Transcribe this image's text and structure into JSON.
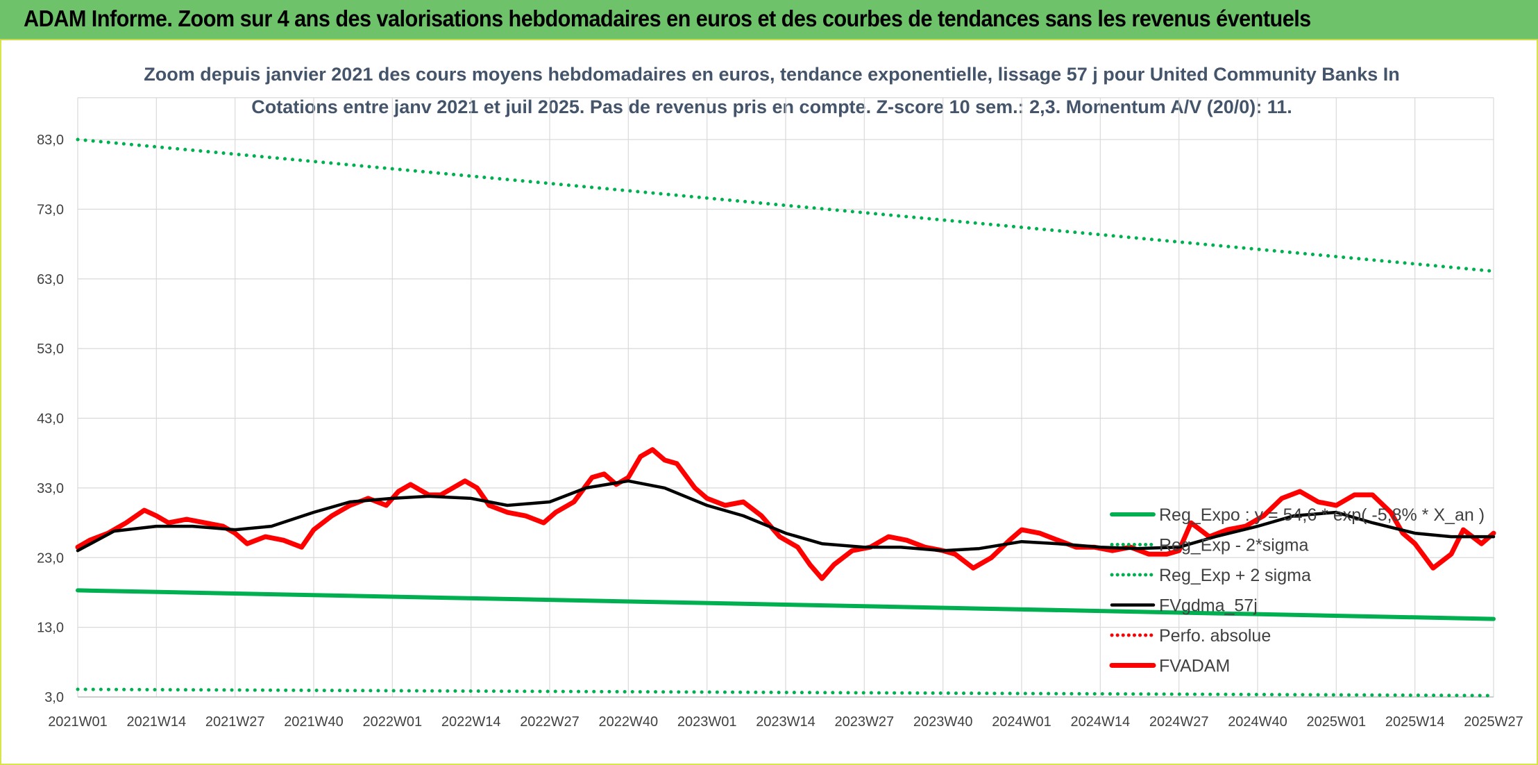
{
  "banner": {
    "title": "ADAM Informe. Zoom sur 4 ans des valorisations hebdomadaires en euros et des courbes de tendances sans les revenus éventuels"
  },
  "chart_data": {
    "type": "line",
    "title": "Zoom depuis janvier 2021 des cours moyens hebdomadaires en euros, tendance exponentielle, lissage 57 j pour United Community Banks In",
    "subtitle": "Cotations entre janv 2021 et juil 2025. Pas de revenus pris en compte. Z-score 10 sem.: 2,3. Momentum A/V (20/0): 11.",
    "xlabel": "",
    "ylabel": "",
    "ylim": [
      3,
      89
    ],
    "yticks": [
      "83,0",
      "73,0",
      "63,0",
      "53,0",
      "43,0",
      "33,0",
      "23,0",
      "13,0",
      "3,0"
    ],
    "yticks_values": [
      83,
      73,
      63,
      53,
      43,
      33,
      23,
      13,
      3
    ],
    "x_tick_labels": [
      "2021W01",
      "2021W14",
      "2021W27",
      "2021W40",
      "2022W01",
      "2022W14",
      "2022W27",
      "2022W40",
      "2023W01",
      "2023W14",
      "2023W27",
      "2023W40",
      "2024W01",
      "2024W14",
      "2024W27",
      "2024W40",
      "2025W01",
      "2025W14",
      "2025W27"
    ],
    "grid": true,
    "legend_position": "right",
    "series": [
      {
        "name": "Reg_Expo : y = 54,6 * exp( -5,8% * X_an )",
        "color": "#00b050",
        "style": "solid",
        "x": [
          "2021W01",
          "2025W27"
        ],
        "values": [
          18.3,
          14.2
        ]
      },
      {
        "name": "Reg_Exp - 2*sigma",
        "color": "#00b050",
        "style": "dotted",
        "x": [
          "2021W01",
          "2025W27"
        ],
        "values": [
          4.1,
          3.2
        ]
      },
      {
        "name": "Reg_Exp + 2 sigma",
        "color": "#00b050",
        "style": "dotted",
        "x": [
          "2021W01",
          "2025W27"
        ],
        "values": [
          83.0,
          64.1
        ]
      },
      {
        "name": "FVgdma_57j",
        "color": "#000000",
        "style": "solid",
        "x": [
          "2021W01",
          "2021W07",
          "2021W14",
          "2021W20",
          "2021W27",
          "2021W33",
          "2021W40",
          "2021W46",
          "2022W01",
          "2022W07",
          "2022W14",
          "2022W20",
          "2022W27",
          "2022W33",
          "2022W40",
          "2022W46",
          "2023W01",
          "2023W07",
          "2023W14",
          "2023W20",
          "2023W27",
          "2023W33",
          "2023W40",
          "2023W46",
          "2024W01",
          "2024W07",
          "2024W14",
          "2024W20",
          "2024W27",
          "2024W33",
          "2024W40",
          "2024W46",
          "2025W01",
          "2025W07",
          "2025W14",
          "2025W20",
          "2025W27"
        ],
        "values": [
          24.0,
          26.8,
          27.5,
          27.5,
          27.0,
          27.5,
          29.5,
          31.0,
          31.5,
          31.8,
          31.5,
          30.5,
          31.0,
          33.0,
          34.0,
          33.0,
          30.5,
          29.0,
          26.5,
          25.0,
          24.5,
          24.5,
          24.0,
          24.3,
          25.3,
          25.0,
          24.5,
          24.3,
          24.5,
          26.0,
          27.5,
          29.0,
          29.5,
          28.0,
          26.5,
          26.0,
          26.0
        ]
      },
      {
        "name": "Perfo. absolue",
        "color": "#ff0000",
        "style": "dotted",
        "x": [],
        "values": []
      },
      {
        "name": "FVADAM",
        "color": "#ff0000",
        "style": "solid",
        "x": [
          "2021W01",
          "2021W03",
          "2021W06",
          "2021W09",
          "2021W12",
          "2021W14",
          "2021W16",
          "2021W19",
          "2021W22",
          "2021W25",
          "2021W27",
          "2021W29",
          "2021W32",
          "2021W35",
          "2021W38",
          "2021W40",
          "2021W43",
          "2021W46",
          "2021W49",
          "2021W52",
          "2022W02",
          "2022W04",
          "2022W07",
          "2022W09",
          "2022W11",
          "2022W13",
          "2022W15",
          "2022W17",
          "2022W20",
          "2022W23",
          "2022W26",
          "2022W28",
          "2022W31",
          "2022W34",
          "2022W36",
          "2022W38",
          "2022W40",
          "2022W42",
          "2022W44",
          "2022W46",
          "2022W48",
          "2022W51",
          "2023W01",
          "2023W04",
          "2023W07",
          "2023W10",
          "2023W13",
          "2023W16",
          "2023W18",
          "2023W20",
          "2023W22",
          "2023W25",
          "2023W28",
          "2023W31",
          "2023W34",
          "2023W37",
          "2023W40",
          "2023W42",
          "2023W45",
          "2023W48",
          "2023W51",
          "2024W01",
          "2024W04",
          "2024W07",
          "2024W10",
          "2024W13",
          "2024W16",
          "2024W19",
          "2024W22",
          "2024W25",
          "2024W27",
          "2024W29",
          "2024W32",
          "2024W35",
          "2024W38",
          "2024W41",
          "2024W44",
          "2024W47",
          "2024W50",
          "2025W01",
          "2025W04",
          "2025W07",
          "2025W10",
          "2025W12",
          "2025W14",
          "2025W17",
          "2025W20",
          "2025W22",
          "2025W25",
          "2025W27"
        ],
        "values": [
          24.5,
          25.5,
          26.5,
          28.0,
          29.8,
          29.0,
          28.0,
          28.5,
          28.0,
          27.5,
          26.5,
          25.0,
          26.0,
          25.5,
          24.5,
          27.0,
          29.0,
          30.5,
          31.5,
          30.5,
          32.5,
          33.5,
          32.0,
          32.0,
          33.0,
          34.0,
          33.0,
          30.5,
          29.5,
          29.0,
          28.0,
          29.5,
          31.0,
          34.5,
          35.0,
          33.5,
          34.5,
          37.5,
          38.5,
          37.0,
          36.5,
          33.0,
          31.5,
          30.5,
          31.0,
          29.0,
          26.0,
          24.5,
          22.0,
          20.0,
          22.0,
          24.0,
          24.5,
          26.0,
          25.5,
          24.5,
          24.0,
          23.5,
          21.5,
          23.0,
          25.5,
          27.0,
          26.5,
          25.5,
          24.5,
          24.5,
          24.0,
          24.5,
          23.5,
          23.5,
          24.0,
          28.0,
          26.0,
          27.0,
          27.5,
          29.0,
          31.5,
          32.5,
          31.0,
          30.5,
          32.0,
          32.0,
          29.5,
          26.5,
          25.0,
          21.5,
          23.5,
          27.0,
          25.0,
          26.5
        ]
      }
    ]
  }
}
